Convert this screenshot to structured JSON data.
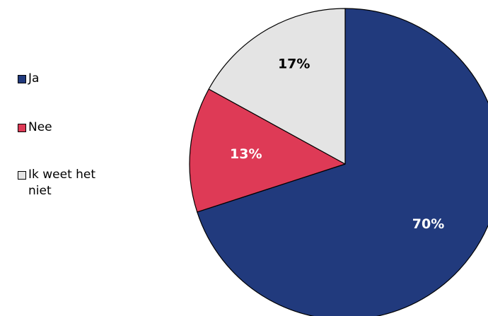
{
  "chart_data": {
    "type": "pie",
    "categories": [
      "Ja",
      "Nee",
      "Ik weet het niet"
    ],
    "values": [
      70,
      13,
      17
    ],
    "labels": [
      "70%",
      "13%",
      "17%"
    ],
    "colors": [
      "#213a7d",
      "#de3a56",
      "#e4e4e4"
    ],
    "label_colors": [
      "#ffffff",
      "#ffffff",
      "#000000"
    ],
    "legend_position": "left",
    "start_angle": "12 o'clock",
    "direction": "clockwise"
  }
}
